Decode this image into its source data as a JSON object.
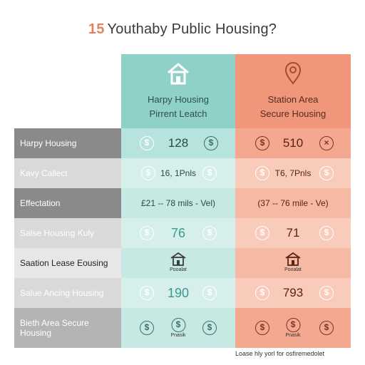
{
  "title": {
    "number": "15",
    "text": "Youthaby Public Housing?"
  },
  "columns": {
    "teal": {
      "line1": "Harpy Housing",
      "line2": "Pirrent Leatch",
      "icon": "house-icon",
      "color": "#8fd1c9"
    },
    "coral": {
      "line1": "Station Area",
      "line2": "Secure Housing",
      "icon": "location-pin-icon",
      "color": "#f0967a"
    }
  },
  "rows": [
    {
      "label": "Harpy Housing",
      "teal": "128",
      "coral": "510"
    },
    {
      "label": "Kavy Callect",
      "teal": "16, 1Pnls",
      "coral": "T6, 7Pnls"
    },
    {
      "label": "Effectation",
      "teal": "£21 -- 78 mils - Vel)",
      "coral": "(37 -- 76 mile - Ve)"
    },
    {
      "label": "Salse Housing Kuly",
      "teal": "76",
      "coral": "71"
    },
    {
      "label": "Saation Lease Eousing",
      "teal_caption": "Pooalat",
      "coral_caption": "Pooalat"
    },
    {
      "label": "Salue Ancing Housing",
      "teal": "190",
      "coral": "793"
    },
    {
      "label": "Bieth Area Secure Housing",
      "teal_caption": "Pnasik",
      "coral_caption": "Pnasik"
    }
  ],
  "footnote": "Loase hly yorl for osfiremedolet"
}
